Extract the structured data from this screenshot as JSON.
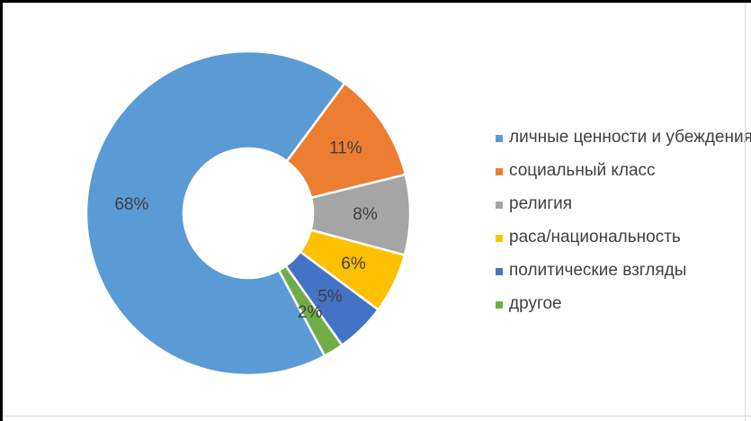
{
  "chart_data": {
    "type": "pie",
    "subtype": "donut",
    "title": "",
    "categories": [
      "личные ценности и убеждения",
      "социальный класс",
      "религия",
      "раса/национальность",
      "политические взгляды",
      "другое"
    ],
    "values": [
      68,
      11,
      8,
      6,
      5,
      2
    ],
    "data_labels": [
      "68%",
      "11%",
      "8%",
      "6%",
      "5%",
      "2%"
    ],
    "colors": [
      "#5B9BD5",
      "#ED7D31",
      "#A5A5A5",
      "#FFC000",
      "#4472C4",
      "#70AD47"
    ],
    "layout": {
      "legend_position": "right",
      "start_angle_deg": 151.8,
      "direction": "clockwise",
      "center": [
        273,
        234
      ],
      "outer_radius": 180,
      "inner_radius": 72,
      "label_radius": 130,
      "label_color": "#404040",
      "slice_gap_color": "#FFFFFF",
      "slice_gap_width": 2.5
    }
  },
  "frame": {
    "background": "#FFFFFF",
    "outer_border_color": "#000000",
    "inner_line_color": "#D9D9D9"
  }
}
